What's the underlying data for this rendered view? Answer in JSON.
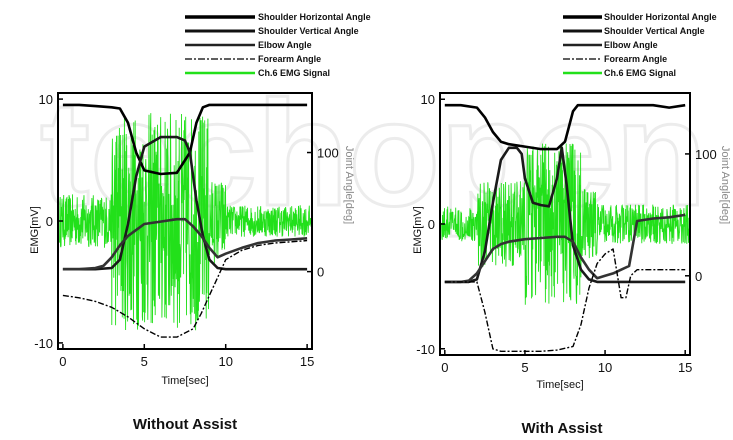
{
  "watermark": "techopen",
  "chart_data": [
    {
      "type": "line",
      "caption": "Without Assist",
      "xlabel": "Time[sec]",
      "ylabel_left": "EMG[mV]",
      "ylabel_right": "Joint Angle[deg]",
      "xlim": [
        -0.3,
        15.3
      ],
      "ylim_left": [
        -10.5,
        10.5
      ],
      "ylim_right": [
        -65,
        150
      ],
      "xticks": [
        "0",
        "5",
        "10",
        "15"
      ],
      "yticks_left": [
        "10",
        "0",
        "-10"
      ],
      "yticks_right": [
        "100",
        "0"
      ],
      "legend": [
        "Shoulder Horizontal Angle",
        "Shoulder Vertical Angle",
        "Elbow Angle",
        "Forearm Angle",
        "Ch.6 EMG Signal"
      ],
      "series": [
        {
          "name": "Shoulder Horizontal Angle",
          "color": "#000000",
          "style": "solid",
          "x": [
            0,
            1,
            2,
            3,
            3.5,
            4,
            4.5,
            5,
            6,
            7,
            7.8,
            8.2,
            8.6,
            9,
            9.5,
            10,
            11,
            12,
            13,
            14,
            15
          ],
          "y": [
            140,
            140,
            139,
            138,
            137,
            125,
            100,
            85,
            82,
            83,
            100,
            125,
            138,
            140,
            140,
            140,
            140,
            140,
            140,
            140,
            140
          ]
        },
        {
          "name": "Shoulder Vertical Angle",
          "color": "#1a1a1a",
          "style": "solid",
          "x": [
            0,
            1,
            2,
            3,
            3.5,
            4,
            4.5,
            5,
            6,
            7,
            7.5,
            7.8,
            8.2,
            8.6,
            9,
            9.5,
            10,
            11,
            12,
            13,
            14,
            15
          ],
          "y": [
            2,
            2,
            2,
            3,
            10,
            40,
            80,
            105,
            113,
            113,
            110,
            100,
            60,
            30,
            10,
            3,
            2,
            2,
            2,
            2,
            2,
            2
          ]
        },
        {
          "name": "Elbow Angle",
          "color": "#333333",
          "style": "solid",
          "x": [
            0,
            1,
            2,
            2.5,
            3,
            3.5,
            4,
            4.5,
            5,
            6,
            7,
            7.5,
            8,
            8.5,
            9,
            9.5,
            10,
            11,
            12,
            13,
            14,
            15
          ],
          "y": [
            2,
            2,
            3,
            5,
            12,
            22,
            30,
            35,
            40,
            42,
            44,
            44,
            38,
            30,
            20,
            12,
            15,
            20,
            24,
            26,
            27,
            28
          ]
        },
        {
          "name": "Forearm Angle",
          "color": "#000000",
          "style": "dashed",
          "x": [
            0,
            1,
            2,
            3,
            4,
            5,
            6,
            7,
            8,
            8.5,
            9,
            9.5,
            10,
            11,
            12,
            13,
            14,
            15
          ],
          "y": [
            -20,
            -22,
            -25,
            -30,
            -38,
            -48,
            -55,
            -55,
            -48,
            -35,
            -20,
            -5,
            10,
            18,
            22,
            24,
            25,
            26
          ]
        },
        {
          "name": "Ch.6 EMG Signal",
          "color": "#22e01a",
          "style": "solid",
          "noise_profile": "without"
        }
      ]
    },
    {
      "type": "line",
      "caption": "With Assist",
      "xlabel": "Time[sec]",
      "ylabel_left": "EMG[mV]",
      "ylabel_right": "Joint Angle[deg]",
      "xlim": [
        -0.3,
        15.3
      ],
      "ylim_left": [
        -10.5,
        10.5
      ],
      "ylim_right": [
        -65,
        150
      ],
      "xticks": [
        "0",
        "5",
        "10",
        "15"
      ],
      "yticks_left": [
        "10",
        "0",
        "-10"
      ],
      "yticks_right": [
        "100",
        "0"
      ],
      "legend": [
        "Shoulder Horizontal Angle",
        "Shoulder Vertical Angle",
        "Elbow Angle",
        "Forearm Angle",
        "Ch.6 EMG Signal"
      ],
      "series": [
        {
          "name": "Shoulder Horizontal Angle",
          "color": "#000000",
          "style": "solid",
          "x": [
            0,
            1,
            2,
            2.5,
            3,
            3.5,
            4,
            5,
            6,
            7,
            7.5,
            7.8,
            8,
            8.3,
            8.6,
            9,
            9.5,
            10,
            11,
            12,
            13,
            10.5,
            14,
            15
          ],
          "y": [
            140,
            140,
            138,
            130,
            118,
            110,
            108,
            106,
            104,
            104,
            110,
            125,
            135,
            140,
            140,
            140,
            140,
            140,
            140,
            140,
            140,
            140,
            138,
            140
          ]
        },
        {
          "name": "Shoulder Vertical Angle",
          "color": "#1a1a1a",
          "style": "solid",
          "x": [
            0,
            1,
            1.5,
            2,
            2.5,
            3,
            3.5,
            4,
            4.5,
            4.8,
            5,
            5.5,
            6,
            6.5,
            7,
            7.3,
            7.6,
            8,
            8.5,
            9,
            9.5,
            10,
            11,
            12,
            13,
            14,
            15
          ],
          "y": [
            -5,
            -5,
            -5,
            -3,
            20,
            60,
            95,
            105,
            105,
            100,
            80,
            60,
            58,
            57,
            80,
            105,
            75,
            25,
            5,
            -3,
            -5,
            -5,
            -5,
            -5,
            -5,
            -5,
            -5
          ]
        },
        {
          "name": "Elbow Angle",
          "color": "#333333",
          "style": "solid",
          "x": [
            0,
            1,
            1.5,
            2,
            2.5,
            3,
            3.5,
            4,
            5,
            6,
            7,
            7.5,
            8,
            8.5,
            9,
            9.5,
            10,
            10.5,
            11,
            11.5,
            12,
            13,
            14,
            15
          ],
          "y": [
            -5,
            -5,
            -4,
            2,
            12,
            22,
            26,
            28,
            30,
            31,
            32,
            32,
            28,
            15,
            5,
            -2,
            0,
            2,
            5,
            8,
            45,
            47,
            48,
            50
          ]
        },
        {
          "name": "Forearm Angle",
          "color": "#000000",
          "style": "dashed",
          "x": [
            0,
            1,
            2,
            2.5,
            3,
            3.5,
            4,
            5,
            6,
            7,
            8,
            8.5,
            9,
            9.5,
            10,
            10.5,
            11,
            11.3,
            11.6,
            12,
            13,
            14,
            15
          ],
          "y": [
            -5,
            -5,
            -5,
            -30,
            -60,
            -62,
            -62,
            -62,
            -62,
            -61,
            -58,
            -40,
            -10,
            10,
            18,
            22,
            -18,
            -18,
            0,
            5,
            5,
            5,
            5
          ]
        },
        {
          "name": "Ch.6 EMG Signal",
          "color": "#22e01a",
          "style": "solid",
          "noise_profile": "with"
        }
      ]
    }
  ]
}
